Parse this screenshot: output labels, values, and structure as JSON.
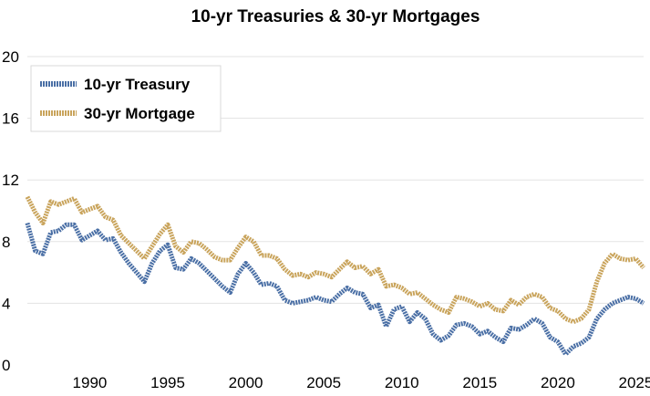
{
  "chart_data": {
    "type": "line",
    "title": "10-yr Treasuries & 30-yr Mortgages",
    "xlabel": "",
    "ylabel": "",
    "xlim": [
      1986,
      2025.5
    ],
    "ylim": [
      0,
      20
    ],
    "y_ticks": [
      0,
      4,
      8,
      12,
      16,
      20
    ],
    "x_ticks": [
      1990,
      1995,
      2000,
      2005,
      2010,
      2015,
      2020,
      2025
    ],
    "grid": "horizontal",
    "legend_position": "top-left",
    "series": [
      {
        "name": "10-yr Treasury",
        "color": "#4a6fa5",
        "x": [
          1986.0,
          1986.5,
          1987.0,
          1987.5,
          1988.0,
          1988.5,
          1989.0,
          1989.5,
          1990.0,
          1990.5,
          1991.0,
          1991.5,
          1992.0,
          1992.5,
          1993.0,
          1993.5,
          1994.0,
          1994.5,
          1995.0,
          1995.5,
          1996.0,
          1996.5,
          1997.0,
          1997.5,
          1998.0,
          1998.5,
          1999.0,
          1999.5,
          2000.0,
          2000.5,
          2001.0,
          2001.5,
          2002.0,
          2002.5,
          2003.0,
          2003.5,
          2004.0,
          2004.5,
          2005.0,
          2005.5,
          2006.0,
          2006.5,
          2007.0,
          2007.5,
          2008.0,
          2008.5,
          2009.0,
          2009.5,
          2010.0,
          2010.5,
          2011.0,
          2011.5,
          2012.0,
          2012.5,
          2013.0,
          2013.5,
          2014.0,
          2014.5,
          2015.0,
          2015.5,
          2016.0,
          2016.5,
          2017.0,
          2017.5,
          2018.0,
          2018.5,
          2019.0,
          2019.5,
          2020.0,
          2020.5,
          2021.0,
          2021.5,
          2022.0,
          2022.5,
          2023.0,
          2023.5,
          2024.0,
          2024.5,
          2025.0,
          2025.5
        ],
        "values": [
          9.2,
          7.4,
          7.2,
          8.6,
          8.7,
          9.1,
          9.1,
          8.1,
          8.4,
          8.7,
          8.1,
          8.2,
          7.3,
          6.6,
          6.0,
          5.4,
          6.6,
          7.4,
          7.8,
          6.3,
          6.2,
          6.9,
          6.6,
          6.1,
          5.6,
          5.1,
          4.7,
          5.9,
          6.6,
          6.0,
          5.2,
          5.3,
          5.1,
          4.2,
          4.0,
          4.1,
          4.2,
          4.4,
          4.2,
          4.1,
          4.6,
          5.0,
          4.7,
          4.6,
          3.7,
          3.9,
          2.5,
          3.6,
          3.8,
          2.8,
          3.4,
          3.0,
          2.0,
          1.6,
          1.9,
          2.6,
          2.7,
          2.5,
          2.0,
          2.2,
          1.8,
          1.5,
          2.4,
          2.3,
          2.6,
          3.0,
          2.7,
          1.8,
          1.5,
          0.7,
          1.2,
          1.4,
          1.8,
          3.0,
          3.6,
          4.0,
          4.2,
          4.4,
          4.3,
          4.0
        ]
      },
      {
        "name": "30-yr Mortgage",
        "color": "#c9a45c",
        "x": [
          1986.0,
          1986.5,
          1987.0,
          1987.5,
          1988.0,
          1988.5,
          1989.0,
          1989.5,
          1990.0,
          1990.5,
          1991.0,
          1991.5,
          1992.0,
          1992.5,
          1993.0,
          1993.5,
          1994.0,
          1994.5,
          1995.0,
          1995.5,
          1996.0,
          1996.5,
          1997.0,
          1997.5,
          1998.0,
          1998.5,
          1999.0,
          1999.5,
          2000.0,
          2000.5,
          2001.0,
          2001.5,
          2002.0,
          2002.5,
          2003.0,
          2003.5,
          2004.0,
          2004.5,
          2005.0,
          2005.5,
          2006.0,
          2006.5,
          2007.0,
          2007.5,
          2008.0,
          2008.5,
          2009.0,
          2009.5,
          2010.0,
          2010.5,
          2011.0,
          2011.5,
          2012.0,
          2012.5,
          2013.0,
          2013.5,
          2014.0,
          2014.5,
          2015.0,
          2015.5,
          2016.0,
          2016.5,
          2017.0,
          2017.5,
          2018.0,
          2018.5,
          2019.0,
          2019.5,
          2020.0,
          2020.5,
          2021.0,
          2021.5,
          2022.0,
          2022.5,
          2023.0,
          2023.5,
          2024.0,
          2024.5,
          2025.0,
          2025.5
        ],
        "values": [
          10.9,
          9.9,
          9.2,
          10.6,
          10.4,
          10.6,
          10.8,
          9.9,
          10.1,
          10.3,
          9.6,
          9.4,
          8.4,
          7.9,
          7.4,
          6.9,
          7.7,
          8.5,
          9.1,
          7.7,
          7.3,
          8.0,
          7.9,
          7.5,
          7.0,
          6.8,
          6.8,
          7.6,
          8.3,
          8.0,
          7.1,
          7.1,
          6.9,
          6.2,
          5.8,
          5.9,
          5.7,
          6.0,
          5.9,
          5.7,
          6.2,
          6.7,
          6.3,
          6.4,
          5.9,
          6.2,
          5.1,
          5.2,
          5.0,
          4.6,
          4.7,
          4.3,
          3.9,
          3.6,
          3.4,
          4.4,
          4.3,
          4.1,
          3.8,
          4.0,
          3.6,
          3.5,
          4.2,
          3.9,
          4.4,
          4.6,
          4.4,
          3.7,
          3.5,
          3.0,
          2.8,
          3.0,
          3.6,
          5.4,
          6.6,
          7.2,
          6.9,
          6.8,
          6.9,
          6.3
        ]
      }
    ]
  }
}
